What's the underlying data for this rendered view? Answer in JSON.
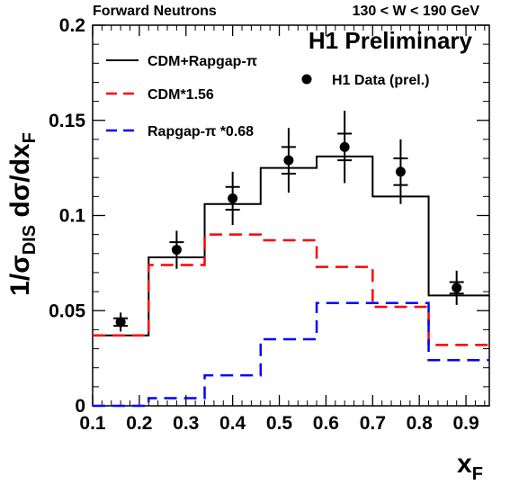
{
  "header": {
    "left_label": "Forward Neutrons",
    "right_label": "130 < W < 190 GeV"
  },
  "brand_label": "H1 Preliminary",
  "chart_data": {
    "type": "line",
    "title": "",
    "xlabel": "x_F",
    "ylabel": "1/σ_DIS dσ/dx_F",
    "xlim": [
      0.1,
      0.95
    ],
    "ylim": [
      0,
      0.2
    ],
    "x_ticks": [
      "0.1",
      "0.2",
      "0.3",
      "0.4",
      "0.5",
      "0.6",
      "0.7",
      "0.8",
      "0.9"
    ],
    "y_ticks": [
      "0",
      "0.05",
      "0.1",
      "0.15",
      "0.2"
    ],
    "grid": false,
    "legend_position": "top-left",
    "series": [
      {
        "name": "CDM+Rapgap-π",
        "style": "solid",
        "color": "#000000",
        "bin_edges": [
          0.1,
          0.22,
          0.34,
          0.46,
          0.58,
          0.7,
          0.82,
          0.95
        ],
        "values": [
          0.037,
          0.078,
          0.106,
          0.125,
          0.131,
          0.11,
          0.058
        ]
      },
      {
        "name": "CDM*1.56",
        "style": "dashed",
        "color": "#ff0000",
        "bin_edges": [
          0.1,
          0.22,
          0.34,
          0.46,
          0.58,
          0.7,
          0.82,
          0.95
        ],
        "values": [
          0.037,
          0.074,
          0.09,
          0.087,
          0.073,
          0.052,
          0.032
        ]
      },
      {
        "name": "Rapgap-π *0.68",
        "style": "dashed",
        "color": "#0000ff",
        "bin_edges": [
          0.1,
          0.22,
          0.34,
          0.46,
          0.58,
          0.7,
          0.82,
          0.95
        ],
        "values": [
          0.0,
          0.004,
          0.016,
          0.035,
          0.054,
          0.054,
          0.024
        ]
      },
      {
        "name": "H1 Data (prel.)",
        "style": "markers",
        "color": "#000000",
        "points": [
          {
            "x": 0.16,
            "y": 0.044,
            "err_stat": 0.002,
            "err_tot": 0.005
          },
          {
            "x": 0.28,
            "y": 0.082,
            "err_stat": 0.004,
            "err_tot": 0.01
          },
          {
            "x": 0.4,
            "y": 0.109,
            "err_stat": 0.006,
            "err_tot": 0.014
          },
          {
            "x": 0.52,
            "y": 0.129,
            "err_stat": 0.007,
            "err_tot": 0.017
          },
          {
            "x": 0.64,
            "y": 0.136,
            "err_stat": 0.007,
            "err_tot": 0.019
          },
          {
            "x": 0.76,
            "y": 0.123,
            "err_stat": 0.007,
            "err_tot": 0.017
          },
          {
            "x": 0.88,
            "y": 0.062,
            "err_stat": 0.003,
            "err_tot": 0.009
          }
        ]
      }
    ]
  }
}
